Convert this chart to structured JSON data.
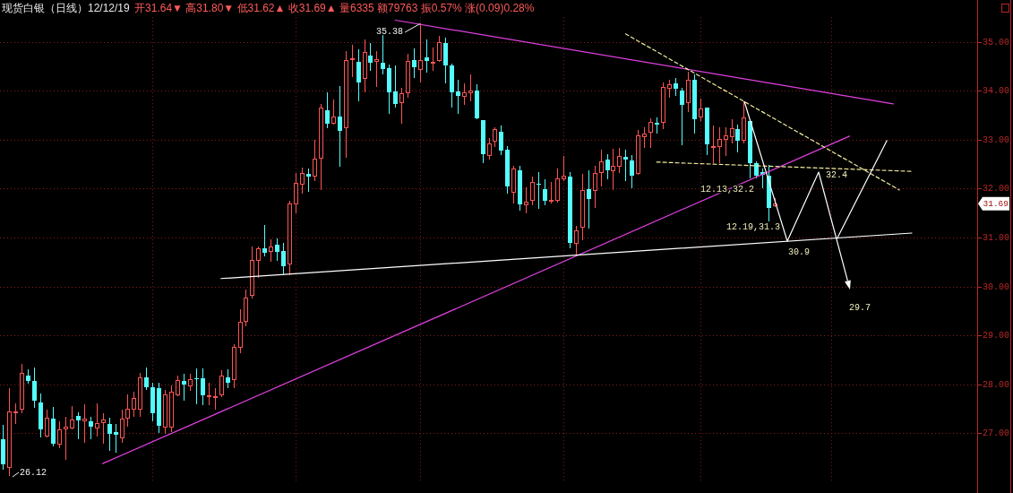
{
  "chart_data": {
    "type": "candlestick",
    "title": "现货白银（日线）12/12/19",
    "subtitle": "开31.64▼ 高31.80▼ 低31.62▲ 收31.69▲ 量6335 额79763 振0.57% 涨(0.09)0.28%",
    "categories": [
      null,
      null,
      null,
      null,
      null,
      null,
      null,
      null,
      null,
      null,
      null,
      null,
      null,
      null,
      null,
      null,
      null,
      null,
      null,
      null,
      null,
      null,
      null,
      null,
      null,
      null,
      null,
      null,
      null,
      null,
      null,
      null,
      null,
      null,
      null,
      null,
      null,
      null,
      null,
      null,
      null,
      null,
      null,
      null,
      null,
      null,
      null,
      null,
      null,
      null,
      null,
      null,
      null,
      null,
      null,
      null,
      null,
      null,
      null,
      null,
      null,
      null,
      null,
      null,
      null,
      null,
      null,
      null,
      null,
      null,
      null,
      null,
      null,
      null,
      null,
      null,
      null,
      null,
      null,
      null,
      null,
      null,
      null,
      null,
      null,
      null,
      null,
      null,
      null,
      null,
      null,
      null,
      null,
      null,
      null,
      null,
      null,
      null,
      null,
      null,
      null,
      null,
      null,
      null,
      null,
      null,
      null,
      null,
      null,
      null,
      null,
      null,
      null,
      null,
      null,
      null,
      null,
      null,
      null,
      null,
      null,
      null,
      null,
      null,
      null,
      null,
      null,
      null,
      null,
      null,
      null,
      null,
      null,
      null,
      null,
      null,
      null,
      null,
      null,
      null,
      null,
      null,
      null,
      null,
      null,
      null,
      null,
      null,
      null,
      null,
      null,
      null,
      null,
      null,
      null,
      null,
      null
    ],
    "ohlc": [
      [
        26.88,
        27.17,
        26.25,
        26.36
      ],
      [
        26.3,
        27.92,
        26.12,
        27.43
      ],
      [
        27.42,
        27.61,
        27.19,
        27.44
      ],
      [
        27.5,
        28.42,
        27.4,
        28.22
      ],
      [
        28.18,
        28.31,
        28.01,
        28.07
      ],
      [
        28.07,
        28.35,
        27.51,
        27.66
      ],
      [
        27.63,
        27.82,
        26.91,
        27.07
      ],
      [
        26.94,
        27.49,
        26.91,
        27.31
      ],
      [
        27.29,
        27.53,
        26.73,
        26.78
      ],
      [
        26.78,
        27.25,
        26.7,
        27.07
      ],
      [
        27.08,
        27.34,
        26.46,
        27.12
      ],
      [
        27.11,
        27.55,
        27.07,
        27.28
      ],
      [
        27.35,
        27.43,
        26.88,
        27.27
      ],
      [
        27.26,
        27.6,
        26.8,
        27.29
      ],
      [
        27.25,
        27.34,
        26.88,
        27.14
      ],
      [
        27.11,
        27.61,
        26.94,
        27.2
      ],
      [
        27.22,
        27.4,
        26.79,
        27.27
      ],
      [
        27.19,
        27.31,
        26.64,
        26.99
      ],
      [
        27.02,
        27.19,
        26.61,
        26.97
      ],
      [
        26.9,
        27.49,
        26.8,
        27.29
      ],
      [
        27.31,
        27.8,
        27.13,
        27.49
      ],
      [
        27.49,
        27.84,
        27.34,
        27.71
      ],
      [
        27.49,
        28.24,
        27.34,
        28.14
      ],
      [
        28.14,
        28.35,
        27.89,
        27.94
      ],
      [
        27.94,
        28.04,
        27.25,
        27.4
      ],
      [
        27.92,
        28.04,
        27.0,
        27.16
      ],
      [
        27.13,
        27.88,
        26.99,
        27.78
      ],
      [
        27.13,
        27.98,
        27.02,
        27.83
      ],
      [
        27.78,
        28.18,
        27.75,
        28.07
      ],
      [
        28.07,
        28.21,
        27.67,
        28.0
      ],
      [
        27.96,
        28.22,
        27.86,
        28.1
      ],
      [
        28.13,
        28.32,
        27.6,
        28.1
      ],
      [
        28.13,
        28.32,
        27.58,
        27.78
      ],
      [
        27.75,
        28.04,
        27.58,
        27.76
      ],
      [
        27.73,
        27.93,
        27.49,
        27.75
      ],
      [
        27.79,
        28.28,
        27.73,
        28.17
      ],
      [
        28.15,
        28.31,
        27.92,
        28.04
      ],
      [
        28.09,
        28.82,
        27.92,
        28.76
      ],
      [
        28.76,
        29.53,
        28.64,
        29.27
      ],
      [
        29.29,
        29.93,
        29.18,
        29.76
      ],
      [
        29.81,
        30.81,
        29.75,
        30.53
      ],
      [
        30.53,
        30.81,
        30.17,
        30.77
      ],
      [
        30.77,
        31.26,
        30.61,
        30.69
      ],
      [
        30.71,
        30.97,
        30.51,
        30.81
      ],
      [
        30.85,
        30.98,
        30.53,
        30.71
      ],
      [
        30.72,
        30.89,
        30.22,
        30.42
      ],
      [
        30.45,
        31.75,
        30.23,
        31.69
      ],
      [
        31.69,
        32.31,
        31.5,
        32.1
      ],
      [
        32.09,
        32.42,
        31.9,
        32.3
      ],
      [
        32.29,
        32.4,
        31.94,
        32.24
      ],
      [
        32.25,
        32.99,
        32.16,
        32.6
      ],
      [
        32.62,
        33.73,
        31.96,
        33.65
      ],
      [
        33.59,
        33.97,
        33.24,
        33.33
      ],
      [
        33.33,
        33.82,
        33.3,
        33.47
      ],
      [
        33.47,
        34.09,
        32.44,
        33.18
      ],
      [
        33.24,
        34.8,
        32.63,
        34.62
      ],
      [
        34.63,
        34.94,
        34.28,
        34.66
      ],
      [
        34.58,
        34.84,
        33.79,
        34.17
      ],
      [
        34.25,
        35.05,
        33.96,
        34.78
      ],
      [
        34.72,
        34.97,
        34.4,
        34.57
      ],
      [
        34.59,
        34.8,
        34.07,
        34.64
      ],
      [
        34.57,
        35.18,
        34.33,
        34.45
      ],
      [
        34.46,
        34.54,
        33.52,
        33.96
      ],
      [
        33.99,
        34.51,
        33.65,
        33.73
      ],
      [
        33.76,
        34.05,
        33.32,
        33.93
      ],
      [
        33.96,
        34.75,
        33.85,
        34.6
      ],
      [
        34.62,
        34.87,
        34.26,
        34.48
      ],
      [
        34.43,
        35.38,
        34.16,
        34.62
      ],
      [
        34.68,
        35.05,
        34.37,
        34.6
      ],
      [
        34.56,
        34.89,
        34.4,
        34.57
      ],
      [
        34.62,
        35.11,
        34.58,
        34.98
      ],
      [
        34.97,
        35.09,
        34.15,
        34.51
      ],
      [
        34.51,
        34.56,
        33.65,
        33.97
      ],
      [
        33.99,
        34.23,
        33.53,
        33.89
      ],
      [
        33.89,
        34.15,
        33.7,
        33.96
      ],
      [
        33.95,
        34.34,
        33.78,
        33.99
      ],
      [
        34.01,
        34.13,
        33.41,
        33.44
      ],
      [
        33.4,
        33.4,
        32.51,
        32.71
      ],
      [
        32.68,
        33.04,
        32.6,
        32.91
      ],
      [
        32.97,
        33.26,
        32.85,
        33.21
      ],
      [
        33.16,
        33.29,
        32.68,
        32.77
      ],
      [
        32.8,
        32.87,
        31.9,
        32.05
      ],
      [
        31.93,
        32.46,
        31.69,
        32.4
      ],
      [
        32.37,
        32.46,
        31.55,
        31.67
      ],
      [
        31.67,
        32.03,
        31.49,
        31.73
      ],
      [
        31.75,
        32.24,
        31.65,
        32.13
      ],
      [
        32.09,
        32.34,
        31.58,
        32.07
      ],
      [
        31.99,
        32.19,
        31.65,
        31.75
      ],
      [
        31.74,
        32.14,
        31.69,
        31.76
      ],
      [
        31.75,
        32.4,
        31.71,
        32.2
      ],
      [
        32.2,
        32.66,
        32.16,
        32.26
      ],
      [
        32.24,
        32.34,
        30.78,
        30.89
      ],
      [
        30.88,
        31.24,
        30.64,
        31.14
      ],
      [
        31.2,
        32.3,
        30.95,
        31.96
      ],
      [
        31.98,
        32.37,
        31.18,
        31.79
      ],
      [
        31.96,
        32.46,
        31.61,
        32.3
      ],
      [
        32.32,
        32.79,
        32.04,
        32.54
      ],
      [
        32.59,
        32.71,
        32.19,
        32.37
      ],
      [
        32.37,
        32.81,
        31.97,
        32.46
      ],
      [
        32.46,
        32.83,
        32.31,
        32.66
      ],
      [
        32.65,
        32.79,
        32.16,
        32.6
      ],
      [
        32.58,
        32.68,
        32.0,
        32.26
      ],
      [
        32.3,
        33.2,
        32.28,
        33.07
      ],
      [
        33.05,
        33.26,
        32.83,
        33.12
      ],
      [
        33.15,
        33.44,
        32.83,
        33.35
      ],
      [
        33.35,
        33.46,
        33.12,
        33.3
      ],
      [
        33.35,
        34.17,
        33.21,
        34.07
      ],
      [
        34.05,
        34.23,
        33.85,
        34.13
      ],
      [
        34.14,
        34.25,
        33.89,
        34.03
      ],
      [
        34.01,
        34.05,
        32.89,
        33.71
      ],
      [
        33.76,
        34.39,
        33.56,
        34.22
      ],
      [
        34.22,
        34.34,
        33.12,
        33.41
      ],
      [
        33.47,
        33.84,
        33.38,
        33.62
      ],
      [
        33.65,
        33.65,
        32.68,
        32.91
      ],
      [
        32.83,
        33.29,
        32.51,
        32.86
      ],
      [
        32.86,
        33.26,
        32.52,
        33.01
      ],
      [
        33.0,
        33.26,
        32.67,
        33.07
      ],
      [
        33.06,
        33.42,
        32.92,
        33.23
      ],
      [
        33.21,
        33.3,
        32.74,
        32.98
      ],
      [
        32.98,
        33.78,
        32.92,
        33.44
      ],
      [
        33.38,
        33.42,
        32.2,
        32.52
      ],
      [
        32.52,
        32.55,
        32.2,
        32.26
      ],
      [
        32.34,
        32.4,
        32.0,
        32.28
      ],
      [
        32.26,
        32.49,
        31.33,
        31.61
      ],
      [
        31.64,
        31.8,
        31.62,
        31.69
      ],
      null,
      null,
      null,
      null,
      null,
      null,
      null,
      null,
      null,
      null,
      null,
      null,
      null,
      null,
      null,
      null,
      null,
      null,
      null,
      null,
      null,
      null,
      null,
      null,
      null,
      null,
      null,
      null,
      null,
      null,
      null,
      null
    ],
    "series": [
      {
        "type": "line",
        "color": "#e040e0",
        "values": [
          null,
          null,
          null,
          null,
          null,
          null,
          null,
          null,
          null,
          null,
          null,
          null,
          null,
          null,
          null,
          null,
          null,
          null,
          null,
          null,
          null,
          null,
          null,
          null,
          null,
          null,
          null,
          null,
          null,
          null,
          null,
          null,
          null,
          null,
          null,
          null,
          null,
          null,
          null,
          null,
          null,
          null,
          null,
          null,
          null,
          null,
          null,
          null,
          null,
          null,
          null,
          null,
          null,
          null,
          null,
          null,
          null,
          null,
          null,
          null,
          null,
          null,
          null,
          35.44,
          null,
          null,
          null,
          null,
          null,
          null,
          null,
          null,
          null,
          null,
          null,
          null,
          null,
          null,
          null,
          null,
          null,
          null,
          null,
          null,
          null,
          null,
          null,
          null,
          null,
          null,
          null,
          null,
          null,
          null,
          null,
          null,
          null,
          null,
          null,
          null,
          null,
          null,
          null,
          null,
          null,
          null,
          null,
          null,
          null,
          null,
          null,
          null,
          null,
          null,
          null,
          null,
          null,
          null,
          null,
          null,
          null,
          null,
          null,
          null,
          null,
          null,
          null,
          null,
          null,
          null,
          null,
          null,
          null,
          null,
          null,
          null,
          null,
          null,
          null,
          null,
          null,
          null,
          null,
          33.73,
          null,
          null,
          null,
          null,
          null,
          null,
          null,
          null,
          null,
          null,
          null,
          null,
          null
        ]
      },
      {
        "type": "line",
        "color": "#e040e0",
        "values": [
          null,
          null,
          null,
          null,
          null,
          null,
          null,
          null,
          null,
          null,
          null,
          null,
          null,
          null,
          null,
          null,
          26.38,
          null,
          null,
          null,
          null,
          null,
          null,
          null,
          null,
          null,
          null,
          null,
          null,
          null,
          null,
          null,
          null,
          null,
          null,
          null,
          null,
          null,
          null,
          null,
          null,
          null,
          null,
          null,
          null,
          null,
          null,
          null,
          null,
          null,
          null,
          null,
          null,
          null,
          null,
          null,
          null,
          null,
          null,
          null,
          null,
          null,
          null,
          null,
          null,
          null,
          null,
          null,
          null,
          null,
          null,
          null,
          null,
          null,
          null,
          null,
          null,
          null,
          null,
          null,
          null,
          null,
          null,
          null,
          null,
          null,
          null,
          null,
          null,
          null,
          null,
          null,
          null,
          null,
          null,
          null,
          null,
          null,
          null,
          null,
          null,
          null,
          null,
          null,
          null,
          null,
          null,
          null,
          null,
          null,
          null,
          null,
          null,
          null,
          null,
          null,
          null,
          null,
          null,
          null,
          null,
          null,
          null,
          null,
          null,
          null,
          null,
          null,
          null,
          null,
          null,
          null,
          null,
          null,
          null,
          null,
          33.07,
          null,
          null,
          null,
          null,
          null,
          null,
          null,
          null,
          null,
          null,
          null,
          null,
          null,
          null,
          null,
          null,
          null,
          null,
          null,
          null
        ]
      },
      {
        "type": "line",
        "color": "#ffffff",
        "values": [
          null,
          null,
          null,
          null,
          null,
          null,
          null,
          null,
          null,
          null,
          null,
          null,
          null,
          null,
          null,
          null,
          null,
          null,
          null,
          null,
          null,
          null,
          null,
          null,
          null,
          null,
          null,
          null,
          null,
          null,
          null,
          null,
          null,
          null,
          null,
          30.16,
          null,
          null,
          null,
          null,
          null,
          null,
          null,
          null,
          null,
          null,
          null,
          null,
          null,
          null,
          null,
          null,
          null,
          null,
          null,
          null,
          null,
          null,
          null,
          null,
          null,
          null,
          null,
          null,
          null,
          null,
          null,
          null,
          null,
          null,
          null,
          null,
          null,
          null,
          null,
          null,
          null,
          null,
          null,
          null,
          null,
          null,
          null,
          null,
          null,
          null,
          null,
          null,
          null,
          null,
          null,
          null,
          null,
          null,
          null,
          null,
          null,
          null,
          null,
          null,
          null,
          null,
          null,
          null,
          null,
          null,
          null,
          null,
          null,
          null,
          null,
          null,
          null,
          null,
          null,
          null,
          null,
          null,
          null,
          null,
          null,
          null,
          null,
          null,
          null,
          null,
          null,
          null,
          null,
          null,
          null,
          null,
          null,
          null,
          null,
          null,
          null,
          null,
          null,
          null,
          null,
          null,
          null,
          null,
          null,
          null,
          31.09,
          null,
          null,
          null,
          null,
          null,
          null,
          null,
          null,
          null,
          null
        ]
      },
      {
        "type": "line",
        "color": "#f4eca0",
        "line_style": "dashed",
        "values": [
          null,
          null,
          null,
          null,
          null,
          null,
          null,
          null,
          null,
          null,
          null,
          null,
          null,
          null,
          null,
          null,
          null,
          null,
          null,
          null,
          null,
          null,
          null,
          null,
          null,
          null,
          null,
          null,
          null,
          null,
          null,
          null,
          null,
          null,
          null,
          null,
          null,
          null,
          null,
          null,
          null,
          null,
          null,
          null,
          null,
          null,
          null,
          null,
          null,
          null,
          null,
          null,
          null,
          null,
          null,
          null,
          null,
          null,
          null,
          null,
          null,
          null,
          null,
          null,
          null,
          null,
          null,
          null,
          null,
          null,
          null,
          null,
          null,
          null,
          null,
          null,
          null,
          null,
          null,
          null,
          null,
          null,
          null,
          null,
          null,
          null,
          null,
          null,
          null,
          null,
          null,
          null,
          null,
          null,
          null,
          null,
          null,
          null,
          null,
          null,
          35.16,
          null,
          null,
          null,
          null,
          null,
          null,
          null,
          null,
          null,
          null,
          null,
          null,
          null,
          null,
          null,
          null,
          null,
          null,
          null,
          null,
          null,
          null,
          null,
          null,
          null,
          null,
          null,
          null,
          null,
          null,
          null,
          null,
          null,
          null,
          null,
          null,
          null,
          null,
          null,
          null,
          null,
          null,
          null,
          31.97,
          null,
          null,
          null,
          null,
          null,
          null,
          null,
          null,
          null,
          null,
          null,
          null
        ]
      },
      {
        "type": "line",
        "color": "#f4eca0",
        "line_style": "dashed",
        "values": [
          null,
          null,
          null,
          null,
          null,
          null,
          null,
          null,
          null,
          null,
          null,
          null,
          null,
          null,
          null,
          null,
          null,
          null,
          null,
          null,
          null,
          null,
          null,
          null,
          null,
          null,
          null,
          null,
          null,
          null,
          null,
          null,
          null,
          null,
          null,
          null,
          null,
          null,
          null,
          null,
          null,
          null,
          null,
          null,
          null,
          null,
          null,
          null,
          null,
          null,
          null,
          null,
          null,
          null,
          null,
          null,
          null,
          null,
          null,
          null,
          null,
          null,
          null,
          null,
          null,
          null,
          null,
          null,
          null,
          null,
          null,
          null,
          null,
          null,
          null,
          null,
          null,
          null,
          null,
          null,
          null,
          null,
          null,
          null,
          null,
          null,
          null,
          null,
          null,
          null,
          null,
          null,
          null,
          null,
          null,
          null,
          null,
          null,
          null,
          null,
          null,
          null,
          null,
          null,
          null,
          32.54,
          null,
          null,
          null,
          null,
          null,
          null,
          null,
          null,
          null,
          null,
          null,
          null,
          null,
          null,
          null,
          null,
          null,
          null,
          null,
          null,
          null,
          null,
          null,
          null,
          null,
          null,
          null,
          null,
          null,
          null,
          null,
          null,
          null,
          null,
          null,
          null,
          null,
          null,
          null,
          null,
          32.35,
          null,
          null,
          null,
          null,
          null,
          null,
          null,
          null,
          null,
          null
        ]
      },
      {
        "type": "line",
        "color": "#ffffff",
        "values": [
          null,
          null,
          null,
          null,
          null,
          null,
          null,
          null,
          null,
          null,
          null,
          null,
          null,
          null,
          null,
          null,
          null,
          null,
          null,
          null,
          null,
          null,
          null,
          null,
          null,
          null,
          null,
          null,
          null,
          null,
          null,
          null,
          null,
          null,
          null,
          null,
          null,
          null,
          null,
          null,
          null,
          null,
          null,
          null,
          null,
          null,
          null,
          null,
          null,
          null,
          null,
          null,
          null,
          null,
          null,
          null,
          null,
          null,
          null,
          null,
          null,
          null,
          null,
          null,
          null,
          null,
          null,
          null,
          null,
          null,
          null,
          null,
          null,
          null,
          null,
          null,
          null,
          null,
          null,
          null,
          null,
          null,
          null,
          null,
          null,
          null,
          null,
          null,
          null,
          null,
          null,
          null,
          null,
          null,
          null,
          null,
          null,
          null,
          null,
          null,
          null,
          null,
          null,
          null,
          null,
          null,
          null,
          null,
          null,
          null,
          null,
          null,
          null,
          null,
          null,
          null,
          null,
          null,
          null,
          null,
          null,
          null,
          null,
          null,
          null,
          null,
          null,
          null,
          null,
          null,
          null,
          null,
          null,
          null,
          30.98,
          null,
          null,
          null,
          null,
          null,
          null,
          null,
          32.98,
          null,
          null,
          null,
          null,
          null,
          null,
          null,
          null,
          null,
          null,
          null,
          null,
          null,
          null
        ]
      }
    ],
    "ylim": [
      26.0,
      35.5
    ],
    "yticks": [
      {
        "value": 27,
        "label": "27.00"
      },
      {
        "value": 28,
        "label": "28.00"
      },
      {
        "value": 29,
        "label": "29.00"
      },
      {
        "value": 30,
        "label": "30.00"
      },
      {
        "value": 31,
        "label": "31.00"
      },
      {
        "value": 32,
        "label": "32.00"
      },
      {
        "value": 33,
        "label": "33.00"
      },
      {
        "value": 34,
        "label": "34.00"
      },
      {
        "value": 35,
        "label": "35.00"
      }
    ],
    "grid": "y",
    "tick_labels": "y",
    "annotations": [
      "35.38",
      "26.12",
      "12.13,32.2",
      "12.19,31.3",
      "30.9",
      "32.4",
      "29.7",
      "31.69"
    ]
  }
}
